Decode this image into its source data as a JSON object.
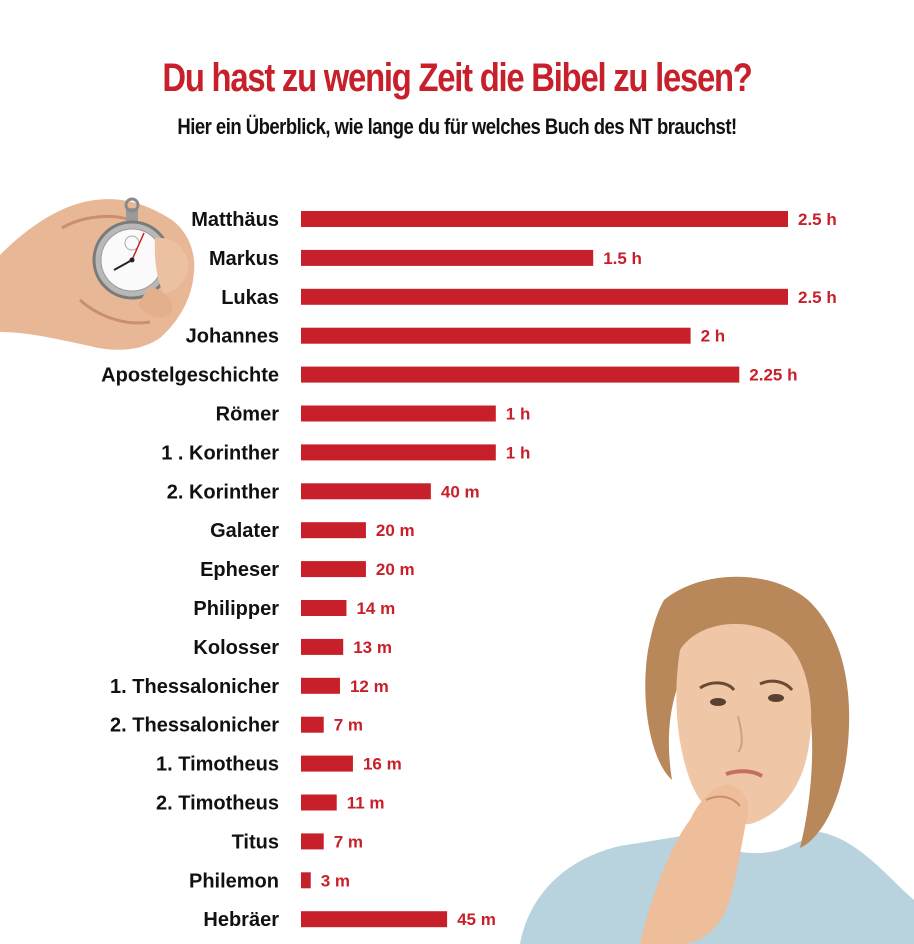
{
  "title": "Du hast zu wenig Zeit die Bibel zu lesen?",
  "subtitle": "Hier ein Überblick, wie lange du für welches Buch des NT brauchst!",
  "colors": {
    "accent": "#c8202a",
    "text": "#111111"
  },
  "chart_data": {
    "type": "bar",
    "orientation": "horizontal",
    "unit": "minutes",
    "categories": [
      "Matthäus",
      "Markus",
      "Lukas",
      "Johannes",
      "Apostelgeschichte",
      "Römer",
      "1 . Korinther",
      "2. Korinther",
      "Galater",
      "Epheser",
      "Philipper",
      "Kolosser",
      "1. Thessalonicher",
      "2. Thessalonicher",
      "1. Timotheus",
      "2. Timotheus",
      "Titus",
      "Philemon",
      "Hebräer"
    ],
    "values": [
      150,
      90,
      150,
      120,
      135,
      60,
      60,
      40,
      20,
      20,
      14,
      13,
      12,
      7,
      16,
      11,
      7,
      3,
      45
    ],
    "data_labels": [
      "2.5 h",
      "1.5 h",
      "2.5 h",
      "2 h",
      "2.25 h",
      "1 h",
      "1 h",
      "40 m",
      "20 m",
      "20 m",
      "14 m",
      "13 m",
      "12 m",
      "7 m",
      "16 m",
      "11 m",
      "7 m",
      "3 m",
      "45 m"
    ],
    "xlim": [
      0,
      150
    ],
    "grid": false,
    "legend": "none"
  }
}
